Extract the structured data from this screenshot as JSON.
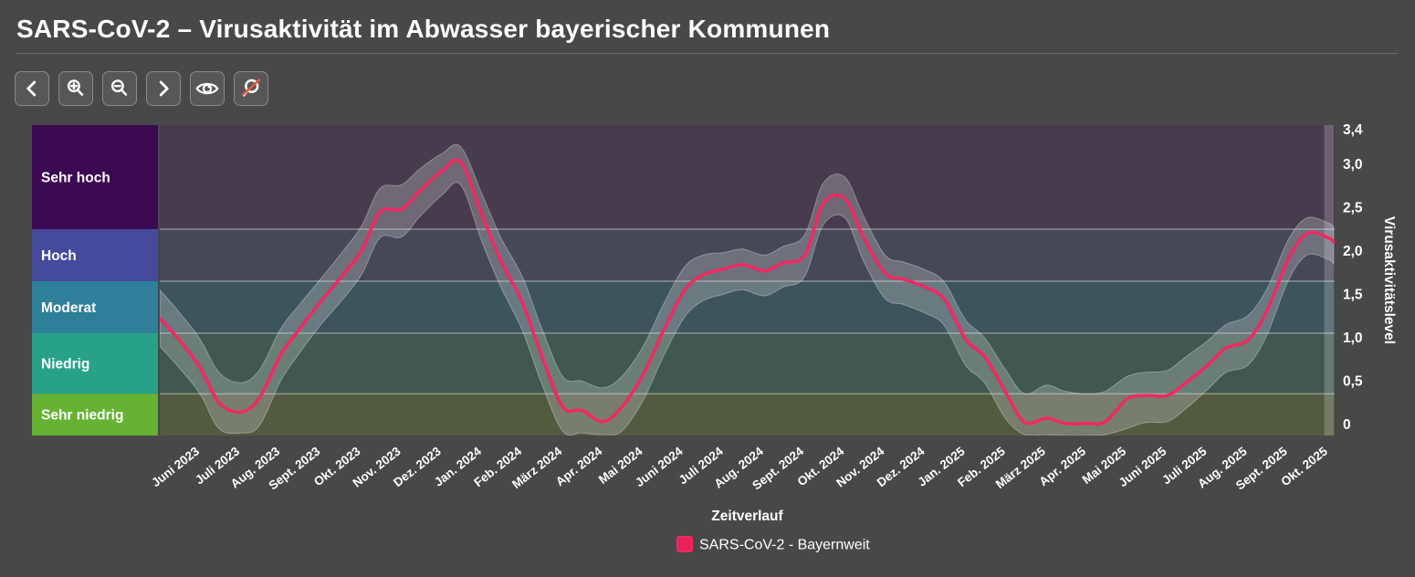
{
  "header": {
    "title": "SARS-CoV-2 – Virusaktivität im Abwasser bayerischer Kommunen"
  },
  "toolbar": {
    "buttons": [
      {
        "name": "pan-left",
        "icon": "chevron-left-icon"
      },
      {
        "name": "zoom-in",
        "icon": "magnifier-plus-icon"
      },
      {
        "name": "zoom-out",
        "icon": "magnifier-minus-icon"
      },
      {
        "name": "pan-right",
        "icon": "chevron-right-icon"
      },
      {
        "name": "toggle-view",
        "icon": "eye-icon"
      },
      {
        "name": "reset-zoom",
        "icon": "magnifier-slash-icon"
      }
    ]
  },
  "chart_data": {
    "type": "line",
    "xlabel": "Zeitverlauf",
    "ylabel": "Virusaktivitätslevel",
    "ylim": [
      -0.13,
      3.45
    ],
    "grid": "horizontal-zone-boundaries",
    "legend_position": "bottom",
    "series_name": "SARS-CoV-2 - Bayernweit",
    "line_color": "#ee2a62",
    "band_color": "rgba(228,233,233,0.26)",
    "band_edge_color": "rgba(255,255,255,0.32)",
    "highlight_color": "rgba(255,255,255,0.20)",
    "zones": [
      {
        "label": "Sehr hoch",
        "from": 2.25,
        "to": 3.45,
        "color": "#3c0a53",
        "plot_color": "#473c4e"
      },
      {
        "label": "Hoch",
        "from": 1.65,
        "to": 2.25,
        "color": "#464a9d",
        "plot_color": "#454857"
      },
      {
        "label": "Moderat",
        "from": 1.05,
        "to": 1.65,
        "color": "#2e7f99",
        "plot_color": "#3e545c"
      },
      {
        "label": "Niedrig",
        "from": 0.35,
        "to": 1.05,
        "color": "#28a287",
        "plot_color": "#40584f"
      },
      {
        "label": "Sehr niedrig",
        "from": -0.13,
        "to": 0.35,
        "color": "#66b233",
        "plot_color": "#525a40"
      }
    ],
    "y_ticks": [
      {
        "v": 3.4,
        "label": "3,4"
      },
      {
        "v": 3.0,
        "label": "3,0"
      },
      {
        "v": 2.5,
        "label": "2,5"
      },
      {
        "v": 2.0,
        "label": "2,0"
      },
      {
        "v": 1.5,
        "label": "1,5"
      },
      {
        "v": 1.0,
        "label": "1,0"
      },
      {
        "v": 0.5,
        "label": "0,5"
      },
      {
        "v": 0.0,
        "label": "0"
      }
    ],
    "x_tick_labels": [
      "Juni 2023",
      "Juli 2023",
      "Aug. 2023",
      "Sept. 2023",
      "Okt. 2023",
      "Nov. 2023",
      "Dez. 2023",
      "Jan. 2024",
      "Feb. 2024",
      "März 2024",
      "Apr. 2024",
      "Mai 2024",
      "Juni 2024",
      "Juli 2024",
      "Aug. 2024",
      "Sept. 2024",
      "Okt. 2024",
      "Nov. 2024",
      "Dez. 2024",
      "Jan. 2025",
      "Feb. 2025",
      "März 2025",
      "Apr. 2025",
      "Mai 2025",
      "Juni 2025",
      "Juli 2025",
      "Aug. 2025",
      "Sept. 2025",
      "Okt. 2025"
    ],
    "x": [
      "2023-05-01",
      "2023-05-15",
      "2023-06-01",
      "2023-06-15",
      "2023-07-01",
      "2023-07-15",
      "2023-08-01",
      "2023-08-15",
      "2023-09-01",
      "2023-09-15",
      "2023-10-01",
      "2023-10-15",
      "2023-11-01",
      "2023-11-15",
      "2023-12-01",
      "2023-12-15",
      "2024-01-01",
      "2024-01-15",
      "2024-02-01",
      "2024-02-15",
      "2024-03-01",
      "2024-03-15",
      "2024-04-01",
      "2024-04-15",
      "2024-05-01",
      "2024-05-15",
      "2024-06-01",
      "2024-06-15",
      "2024-07-01",
      "2024-07-15",
      "2024-08-01",
      "2024-08-15",
      "2024-09-01",
      "2024-09-15",
      "2024-10-01",
      "2024-10-15",
      "2024-11-01",
      "2024-11-15",
      "2024-12-01",
      "2024-12-15",
      "2025-01-01",
      "2025-01-15",
      "2025-02-01",
      "2025-02-15",
      "2025-03-01",
      "2025-03-15",
      "2025-04-01",
      "2025-04-15",
      "2025-05-01",
      "2025-05-15",
      "2025-06-01",
      "2025-06-15",
      "2025-07-01",
      "2025-07-15",
      "2025-08-01",
      "2025-08-15",
      "2025-09-01",
      "2025-09-15",
      "2025-10-01",
      "2025-10-05"
    ],
    "values": [
      1.22,
      0.98,
      0.65,
      0.25,
      0.14,
      0.3,
      0.8,
      1.1,
      1.42,
      1.68,
      2.0,
      2.45,
      2.48,
      2.7,
      2.92,
      3.02,
      2.4,
      1.88,
      1.4,
      0.8,
      0.2,
      0.16,
      0.03,
      0.2,
      0.58,
      1.05,
      1.53,
      1.72,
      1.79,
      1.84,
      1.77,
      1.86,
      1.95,
      2.55,
      2.6,
      2.15,
      1.74,
      1.67,
      1.58,
      1.44,
      0.98,
      0.78,
      0.36,
      0.02,
      0.07,
      0.01,
      0.01,
      0.03,
      0.29,
      0.33,
      0.33,
      0.48,
      0.68,
      0.88,
      0.97,
      1.3,
      1.9,
      2.2,
      2.15,
      2.1
    ],
    "band_upper": [
      1.55,
      1.3,
      0.98,
      0.6,
      0.48,
      0.62,
      1.1,
      1.38,
      1.68,
      1.95,
      2.28,
      2.72,
      2.76,
      2.95,
      3.12,
      3.2,
      2.65,
      2.15,
      1.7,
      1.12,
      0.55,
      0.5,
      0.42,
      0.55,
      0.9,
      1.35,
      1.8,
      1.95,
      1.98,
      2.02,
      1.95,
      2.05,
      2.18,
      2.78,
      2.85,
      2.4,
      1.95,
      1.87,
      1.78,
      1.64,
      1.2,
      1.0,
      0.62,
      0.35,
      0.45,
      0.38,
      0.35,
      0.38,
      0.55,
      0.6,
      0.62,
      0.78,
      0.96,
      1.15,
      1.25,
      1.55,
      2.12,
      2.38,
      2.32,
      2.28
    ],
    "band_lower": [
      0.9,
      0.66,
      0.35,
      -0.05,
      -0.1,
      -0.02,
      0.5,
      0.82,
      1.15,
      1.4,
      1.72,
      2.15,
      2.16,
      2.4,
      2.64,
      2.76,
      2.1,
      1.58,
      1.08,
      0.48,
      -0.08,
      -0.1,
      -0.12,
      -0.08,
      0.28,
      0.75,
      1.22,
      1.42,
      1.5,
      1.55,
      1.48,
      1.58,
      1.7,
      2.3,
      2.38,
      1.88,
      1.45,
      1.38,
      1.28,
      1.14,
      0.68,
      0.48,
      0.06,
      -0.12,
      -0.12,
      -0.13,
      -0.13,
      -0.12,
      -0.05,
      0.02,
      0.03,
      0.18,
      0.4,
      0.6,
      0.68,
      1.02,
      1.65,
      1.95,
      1.9,
      1.85
    ],
    "recent_highlight_from": "2025-09-28",
    "recent_highlight_to": "2025-10-05"
  },
  "legend": {
    "items": [
      {
        "label": "SARS-CoV-2 - Bayernweit",
        "color": "#e8215b"
      }
    ]
  }
}
